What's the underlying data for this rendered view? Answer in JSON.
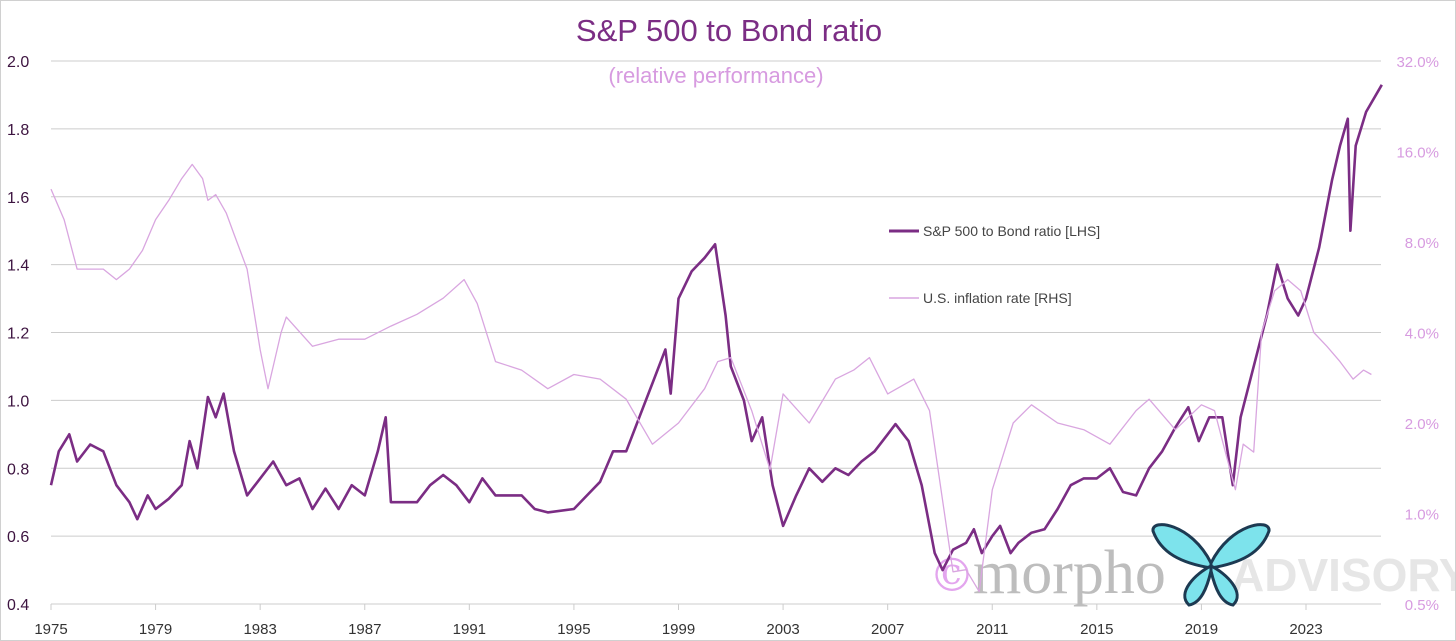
{
  "title": "S&P 500 to Bond ratio",
  "subtitle": "(relative performance)",
  "watermark": {
    "symbol": "©",
    "brand": "morpho",
    "suffix": "ADVISORY"
  },
  "colors": {
    "ratio": "#7b2d84",
    "inflation": "#d9a6e0",
    "grid": "#cccccc"
  },
  "chart_data": {
    "type": "line",
    "title": "S&P 500 to Bond ratio",
    "subtitle": "(relative performance)",
    "x_ticks": [
      "1975",
      "1979",
      "1983",
      "1987",
      "1991",
      "1995",
      "1999",
      "2003",
      "2007",
      "2011",
      "2015",
      "2019",
      "2023"
    ],
    "xlim": [
      1975,
      2026
    ],
    "y_left": {
      "ticks": [
        "0.4",
        "0.6",
        "0.8",
        "1.0",
        "1.2",
        "1.4",
        "1.6",
        "1.8",
        "2.0"
      ],
      "range": [
        0.4,
        2.0
      ]
    },
    "y_right": {
      "scale": "log",
      "ticks": [
        "0.5%",
        "1.0%",
        "2.0%",
        "4.0%",
        "8.0%",
        "16.0%",
        "32.0%"
      ],
      "range": [
        0.5,
        32
      ]
    },
    "legend_position": "center-right",
    "series": [
      {
        "name": "S&P 500 to Bond ratio [LHS]",
        "axis": "left",
        "x": [
          1975,
          1975.3,
          1975.7,
          1976,
          1976.5,
          1977,
          1977.5,
          1978,
          1978.3,
          1978.7,
          1979,
          1979.5,
          1980,
          1980.3,
          1980.6,
          1981,
          1981.3,
          1981.6,
          1982,
          1982.5,
          1983,
          1983.5,
          1984,
          1984.5,
          1985,
          1985.5,
          1986,
          1986.5,
          1987,
          1987.5,
          1987.8,
          1988,
          1989,
          1989.5,
          1990,
          1990.5,
          1991,
          1991.5,
          1992,
          1993,
          1993.5,
          1994,
          1995,
          1995.5,
          1996,
          1996.5,
          1997,
          1997.5,
          1998,
          1998.5,
          1998.7,
          1999,
          1999.5,
          2000,
          2000.4,
          2000.8,
          2001,
          2001.5,
          2001.8,
          2002.2,
          2002.6,
          2003,
          2003.5,
          2004,
          2004.5,
          2005,
          2005.5,
          2006,
          2006.5,
          2007,
          2007.3,
          2007.8,
          2008.3,
          2008.8,
          2009.1,
          2009.5,
          2010,
          2010.3,
          2010.6,
          2011,
          2011.3,
          2011.7,
          2012,
          2012.5,
          2013,
          2013.5,
          2014,
          2014.5,
          2015,
          2015.5,
          2016,
          2016.5,
          2017,
          2017.5,
          2018,
          2018.5,
          2018.9,
          2019.3,
          2019.8,
          2020.2,
          2020.5,
          2021,
          2021.5,
          2021.9,
          2022.3,
          2022.7,
          2023,
          2023.5,
          2024,
          2024.3,
          2024.6,
          2024.7,
          2024.9,
          2025.3,
          2025.9
        ],
        "values": [
          0.75,
          0.85,
          0.9,
          0.82,
          0.87,
          0.85,
          0.75,
          0.7,
          0.65,
          0.72,
          0.68,
          0.71,
          0.75,
          0.88,
          0.8,
          1.01,
          0.95,
          1.02,
          0.85,
          0.72,
          0.77,
          0.82,
          0.75,
          0.77,
          0.68,
          0.74,
          0.68,
          0.75,
          0.72,
          0.85,
          0.95,
          0.7,
          0.7,
          0.75,
          0.78,
          0.75,
          0.7,
          0.77,
          0.72,
          0.72,
          0.68,
          0.67,
          0.68,
          0.72,
          0.76,
          0.85,
          0.85,
          0.95,
          1.05,
          1.15,
          1.02,
          1.3,
          1.38,
          1.42,
          1.46,
          1.25,
          1.1,
          1.0,
          0.88,
          0.95,
          0.75,
          0.63,
          0.72,
          0.8,
          0.76,
          0.8,
          0.78,
          0.82,
          0.85,
          0.9,
          0.93,
          0.88,
          0.75,
          0.55,
          0.5,
          0.56,
          0.58,
          0.62,
          0.55,
          0.6,
          0.63,
          0.55,
          0.58,
          0.61,
          0.62,
          0.68,
          0.75,
          0.77,
          0.77,
          0.8,
          0.73,
          0.72,
          0.8,
          0.85,
          0.92,
          0.98,
          0.88,
          0.95,
          0.95,
          0.75,
          0.95,
          1.1,
          1.25,
          1.4,
          1.3,
          1.25,
          1.3,
          1.45,
          1.65,
          1.75,
          1.83,
          1.5,
          1.75,
          1.85,
          1.93
        ]
      },
      {
        "name": "U.S. inflation rate [RHS]",
        "axis": "right",
        "x": [
          1975,
          1975.5,
          1976,
          1977,
          1977.5,
          1978,
          1978.5,
          1979,
          1979.5,
          1980,
          1980.4,
          1980.8,
          1981,
          1981.3,
          1981.7,
          1982,
          1982.5,
          1983,
          1983.3,
          1983.8,
          1984,
          1985,
          1986,
          1987,
          1988,
          1989,
          1990,
          1990.8,
          1991.3,
          1992,
          1993,
          1994,
          1995,
          1996,
          1997,
          1998,
          1999,
          2000,
          2000.5,
          2001,
          2001.8,
          2002.5,
          2003,
          2004,
          2005,
          2005.7,
          2006.3,
          2007,
          2008,
          2008.6,
          2009.5,
          2010,
          2010.5,
          2011,
          2011.8,
          2012.5,
          2013.5,
          2014.5,
          2015.5,
          2016.5,
          2017,
          2018,
          2019,
          2019.5,
          2020,
          2020.3,
          2020.6,
          2021,
          2021.3,
          2021.8,
          2022.3,
          2022.8,
          2023.3,
          2023.8,
          2024.3,
          2024.8,
          2025.2,
          2025.5
        ],
        "values": [
          12,
          9.5,
          6.5,
          6.5,
          6.0,
          6.5,
          7.5,
          9.5,
          11,
          13,
          14.5,
          13,
          11,
          11.5,
          10,
          8.5,
          6.5,
          3.5,
          2.6,
          4,
          4.5,
          3.6,
          3.8,
          3.8,
          4.2,
          4.6,
          5.2,
          6.0,
          5.0,
          3.2,
          3.0,
          2.6,
          2.9,
          2.8,
          2.4,
          1.7,
          2.0,
          2.6,
          3.2,
          3.3,
          2.2,
          1.4,
          2.5,
          2.0,
          2.8,
          3.0,
          3.3,
          2.5,
          2.8,
          2.2,
          0.64,
          0.65,
          0.55,
          1.2,
          2.0,
          2.3,
          2.0,
          1.9,
          1.7,
          2.2,
          2.4,
          1.9,
          2.3,
          2.2,
          1.5,
          1.2,
          1.7,
          1.6,
          4.0,
          5.5,
          6.0,
          5.5,
          4.0,
          3.6,
          3.2,
          2.8,
          3.0,
          2.9
        ]
      }
    ]
  }
}
